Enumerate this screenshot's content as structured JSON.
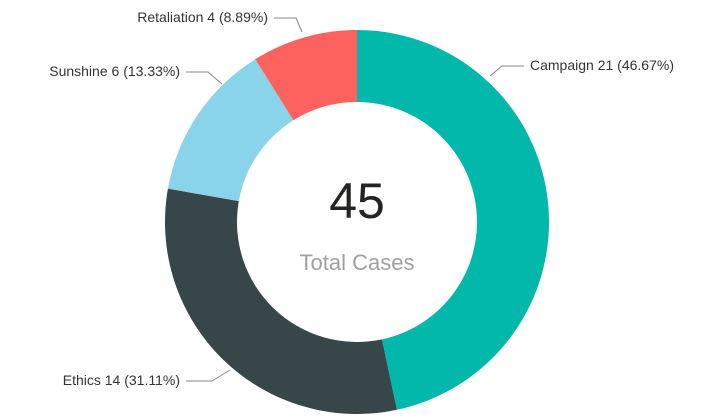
{
  "chart_data": {
    "type": "donut",
    "categories": [
      "Campaign",
      "Ethics",
      "Sunshine",
      "Retaliation"
    ],
    "values": [
      21,
      14,
      6,
      4
    ],
    "value_labels": [
      "21 (46.67%)",
      "14 (31.11%)",
      "6 (13.33%)",
      "4 (8.89%)"
    ],
    "colors": [
      "#01B8AA",
      "#374649",
      "#8AD4EB",
      "#FD625E"
    ],
    "center_value": 45,
    "center_label": "Total Cases"
  }
}
